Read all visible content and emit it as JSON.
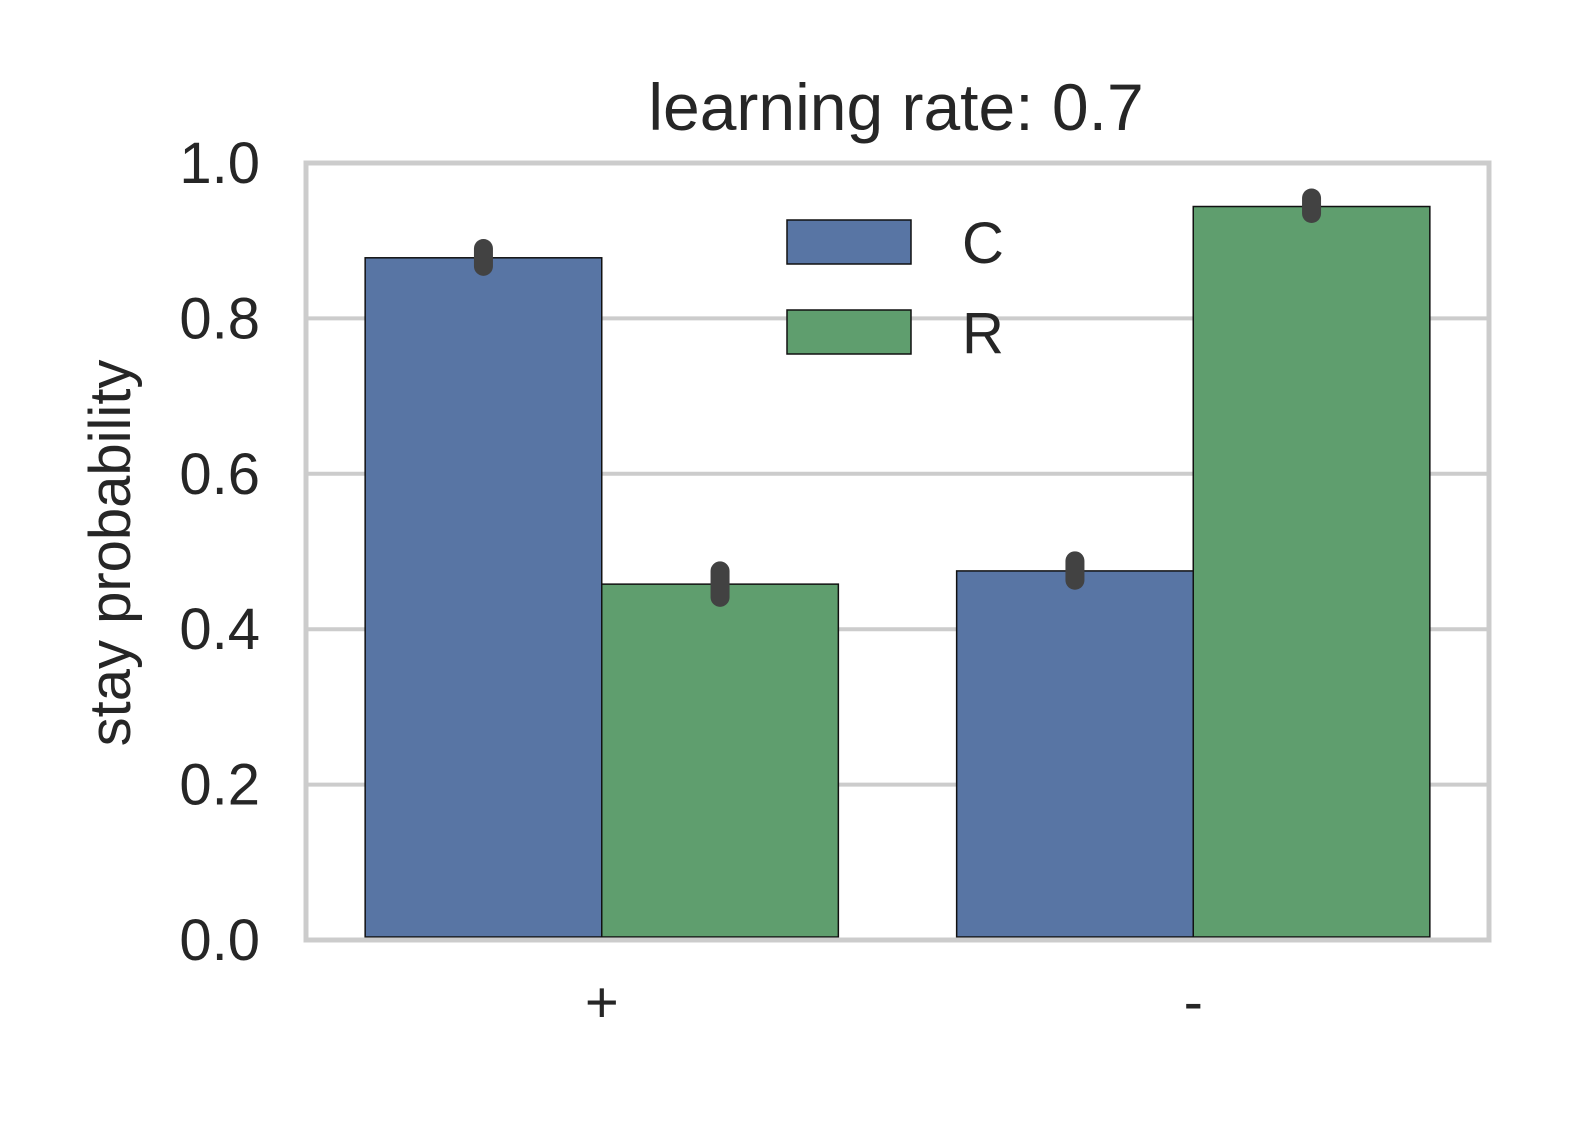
{
  "chart_data": {
    "type": "bar",
    "title": "learning rate: 0.7",
    "xlabel": "",
    "ylabel": "stay probability",
    "ylim": [
      0,
      1
    ],
    "yticks": [
      0.0,
      0.2,
      0.4,
      0.6,
      0.8,
      1.0
    ],
    "ytick_labels": [
      "0.0",
      "0.2",
      "0.4",
      "0.6",
      "0.8",
      "1.0"
    ],
    "categories": [
      "+",
      "-"
    ],
    "series": [
      {
        "name": "C",
        "values": [
          0.878,
          0.475
        ],
        "errors": [
          [
            0.867,
            0.89
          ],
          [
            0.463,
            0.488
          ]
        ],
        "color": "#5875a4"
      },
      {
        "name": "R",
        "values": [
          0.458,
          0.944
        ],
        "errors": [
          [
            0.441,
            0.475
          ],
          [
            0.935,
            0.955
          ]
        ],
        "color": "#5f9e6e"
      }
    ],
    "grid": true,
    "legend_placement": "top-center",
    "colors": {
      "grid": "#cccccc",
      "errorbar": "#424242",
      "text": "#262626"
    }
  }
}
